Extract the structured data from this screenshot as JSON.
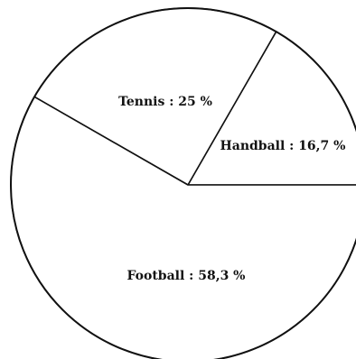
{
  "chart_data": {
    "type": "pie",
    "slices": [
      {
        "label": "Handball : 16,7 %",
        "value": 16.7
      },
      {
        "label": "Tennis : 25 %",
        "value": 25
      },
      {
        "label": "Football : 58,3 %",
        "value": 58.3
      }
    ],
    "start_angle_deg": 0,
    "direction": "counterclockwise",
    "fill_color": "#ffffff",
    "stroke_color": "#111111"
  }
}
